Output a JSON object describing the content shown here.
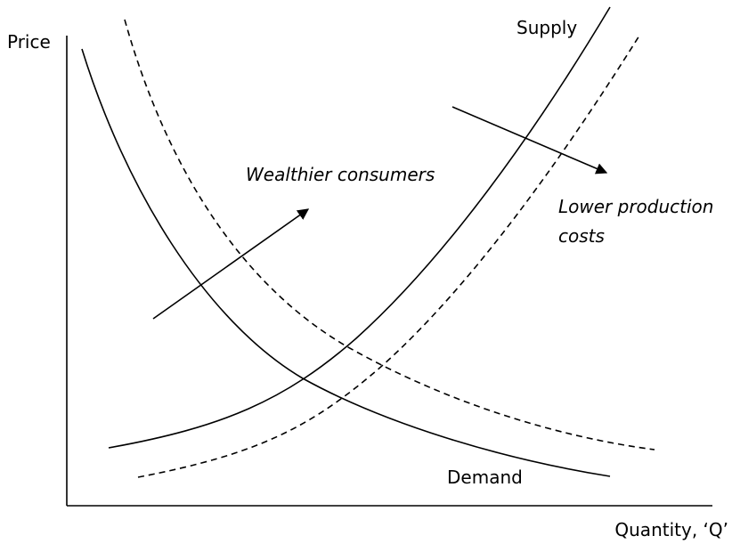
{
  "axes": {
    "y_label": "Price",
    "x_label": "Quantity, ‘Q’"
  },
  "curves": {
    "supply": "Supply",
    "demand": "Demand"
  },
  "annotations": {
    "demand_shift": "Wealthier consumers",
    "supply_shift": [
      "Lower production",
      "costs"
    ]
  }
}
